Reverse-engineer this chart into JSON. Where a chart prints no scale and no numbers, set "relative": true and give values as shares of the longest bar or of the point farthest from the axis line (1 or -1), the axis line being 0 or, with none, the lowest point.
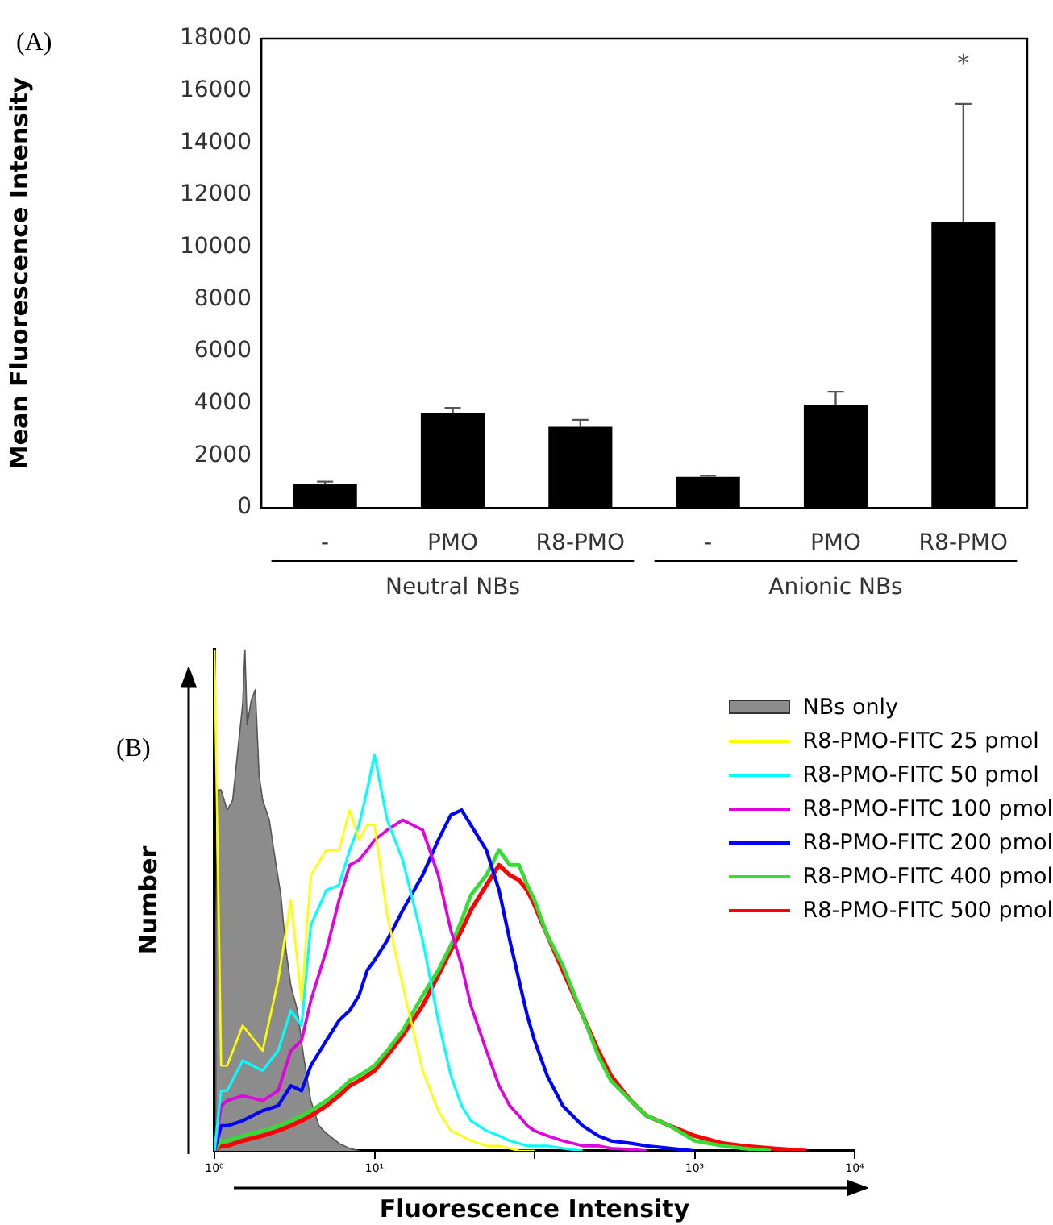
{
  "chart_data": [
    {
      "type": "bar",
      "title": "(A)",
      "ylabel": "Mean Fluorescence Intensity",
      "categories": [
        "-",
        "PMO",
        "R8-PMO",
        "-",
        "PMO",
        "R8-PMO"
      ],
      "values": [
        900,
        3650,
        3110,
        1180,
        3960,
        10950
      ],
      "color": "#000000",
      "errors": [
        [
          900,
          1000
        ],
        [
          3650,
          3830
        ],
        [
          3110,
          3370
        ],
        [
          1180,
          1230
        ],
        [
          3960,
          4450
        ],
        [
          10950,
          15500
        ]
      ],
      "ylim": [
        0,
        18000
      ],
      "yticks": [
        0,
        2000,
        4000,
        6000,
        8000,
        10000,
        12000,
        14000,
        16000,
        18000
      ],
      "annotations": [
        "*",
        "Neutral NBs",
        "Anionic NBs"
      ]
    },
    {
      "type": "line",
      "title": "(B)",
      "xlabel": "Fluorescence Intensity",
      "ylabel": "Number",
      "relative": true,
      "log": "x",
      "marker": "none",
      "legend": "top right",
      "xlim": [
        1,
        10000
      ],
      "xticks": [
        {
          "value": 1,
          "label": "10⁰"
        },
        {
          "value": 10,
          "label": "10¹"
        },
        {
          "value": 100,
          "label": null
        },
        {
          "value": 1000,
          "label": "10³"
        },
        {
          "value": 10000,
          "label": "10⁴"
        }
      ],
      "x": [
        1,
        1.1,
        1.2,
        1.5,
        2,
        2.5,
        3,
        3.5,
        4,
        5,
        6,
        7,
        8,
        9,
        10,
        12,
        15,
        20,
        25,
        30,
        35,
        40,
        50,
        60,
        70,
        80,
        90,
        100,
        120,
        150,
        200,
        250,
        300,
        400,
        500,
        700,
        1000,
        1500,
        2000,
        3000,
        5000
      ],
      "series": [
        {
          "name": "NBs only",
          "type": "area",
          "color": "#8c8c8c",
          "x": [
            1,
            1.02,
            1.05,
            1.1,
            1.2,
            1.3,
            1.4,
            1.5,
            1.55,
            1.6,
            1.7,
            1.8,
            1.9,
            2,
            2.2,
            2.4,
            2.6,
            2.8,
            3,
            3.3,
            3.6,
            4,
            4.5,
            5,
            6,
            7,
            8
          ],
          "values": [
            0,
            0.45,
            0.72,
            0.72,
            0.68,
            0.7,
            0.8,
            0.89,
            1,
            0.85,
            0.9,
            0.92,
            0.75,
            0.7,
            0.66,
            0.58,
            0.51,
            0.4,
            0.33,
            0.28,
            0.19,
            0.1,
            0.05,
            0.035,
            0.015,
            0.005,
            0
          ]
        },
        {
          "name": "R8-PMO-FITC 25 pmol",
          "color": "#ffff00",
          "values": [
            1,
            0.17,
            0.17,
            0.25,
            0.2,
            0.34,
            0.5,
            0.3,
            0.55,
            0.6,
            0.6,
            0.68,
            0.62,
            0.65,
            0.65,
            0.47,
            0.33,
            0.16,
            0.08,
            0.04,
            0.03,
            0.02,
            0.01,
            0.01,
            0.005,
            0,
            0,
            0,
            null,
            null,
            null,
            null,
            null,
            null,
            null,
            null,
            null,
            null,
            null,
            null,
            null
          ]
        },
        {
          "name": "R8-PMO-FITC 50 pmol",
          "color": "#00ffff",
          "values": [
            0,
            0.12,
            0.12,
            0.18,
            0.16,
            0.2,
            0.28,
            0.25,
            0.45,
            0.52,
            0.53,
            0.6,
            0.65,
            0.72,
            0.79,
            0.66,
            0.58,
            0.42,
            0.26,
            0.15,
            0.09,
            0.06,
            0.04,
            0.03,
            0.02,
            0.015,
            0.01,
            0.01,
            0.01,
            0.005,
            0,
            null,
            null,
            null,
            null,
            null,
            null,
            null,
            null,
            null,
            null
          ]
        },
        {
          "name": "R8-PMO-FITC 100 pmol",
          "color": "#e000e0",
          "values": [
            0,
            0.09,
            0.1,
            0.11,
            0.1,
            0.12,
            0.2,
            0.22,
            0.3,
            0.4,
            0.5,
            0.57,
            0.58,
            0.6,
            0.62,
            0.64,
            0.66,
            0.64,
            0.55,
            0.44,
            0.37,
            0.29,
            0.2,
            0.13,
            0.09,
            0.07,
            0.05,
            0.04,
            0.03,
            0.02,
            0.01,
            0.01,
            0.005,
            0.003,
            0,
            null,
            null,
            null,
            null,
            null,
            null
          ]
        },
        {
          "name": "R8-PMO-FITC 200 pmol",
          "color": "#0000ff",
          "values": [
            0,
            0.05,
            0.05,
            0.06,
            0.08,
            0.09,
            0.13,
            0.12,
            0.17,
            0.22,
            0.26,
            0.28,
            0.31,
            0.36,
            0.38,
            0.42,
            0.48,
            0.55,
            0.62,
            0.67,
            0.68,
            0.65,
            0.6,
            0.52,
            0.42,
            0.34,
            0.27,
            0.22,
            0.15,
            0.09,
            0.05,
            0.03,
            0.02,
            0.015,
            0.01,
            0.005,
            0,
            null,
            null,
            null,
            null
          ]
        },
        {
          "name": "R8-PMO-FITC 400 pmol",
          "color": "#33dd33",
          "values": [
            0,
            0.02,
            0.02,
            0.03,
            0.04,
            0.05,
            0.06,
            0.07,
            0.08,
            0.1,
            0.12,
            0.14,
            0.15,
            0.16,
            0.17,
            0.2,
            0.24,
            0.31,
            0.36,
            0.41,
            0.46,
            0.51,
            0.55,
            0.6,
            0.57,
            0.57,
            0.53,
            0.5,
            0.43,
            0.37,
            0.27,
            0.19,
            0.14,
            0.1,
            0.07,
            0.05,
            0.02,
            0.01,
            0.005,
            0,
            null
          ]
        },
        {
          "name": "R8-PMO-FITC 500 pmol",
          "color": "#ff0000",
          "values": [
            0,
            0.01,
            0.01,
            0.02,
            0.03,
            0.04,
            0.05,
            0.06,
            0.07,
            0.09,
            0.11,
            0.13,
            0.14,
            0.15,
            0.16,
            0.19,
            0.23,
            0.29,
            0.35,
            0.4,
            0.44,
            0.48,
            0.53,
            0.57,
            0.55,
            0.54,
            0.52,
            0.49,
            0.43,
            0.36,
            0.27,
            0.2,
            0.15,
            0.1,
            0.07,
            0.05,
            0.03,
            0.015,
            0.01,
            0.005,
            0
          ]
        }
      ]
    }
  ]
}
